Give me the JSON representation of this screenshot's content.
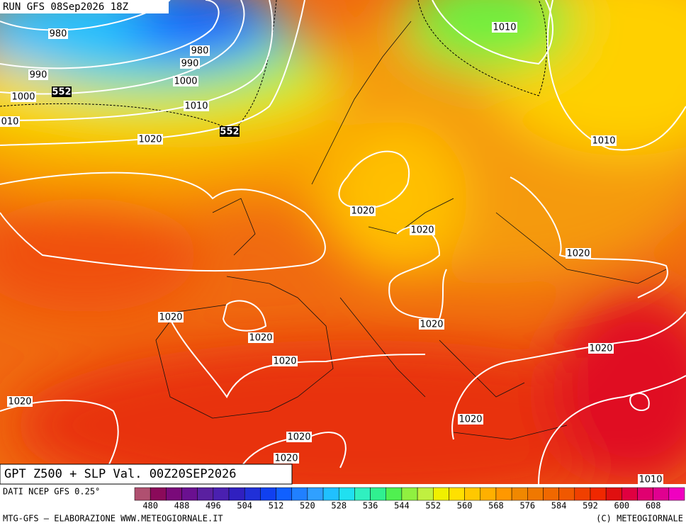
{
  "header": "RUN GFS 08Sep2026 18Z",
  "title": "GPT Z500 + SLP Val. 00Z20SEP2026",
  "isobar_labels": [
    "980",
    "980",
    "990",
    "990",
    "1000",
    "1000",
    "1010",
    "010",
    "1020",
    "1010",
    "1010",
    "1020",
    "1020",
    "1020",
    "1020",
    "1020",
    "1020",
    "1020",
    "1020",
    "1020",
    "1020",
    "1020",
    "1020",
    "1010"
  ],
  "height_labels": [
    "552",
    "552"
  ],
  "source": "DATI NCEP GFS 0.25°",
  "colorbar": {
    "ticks": [
      480,
      488,
      496,
      504,
      512,
      520,
      528,
      536,
      544,
      552,
      560,
      568,
      576,
      584,
      592,
      600,
      608
    ],
    "colors": [
      "#b05070",
      "#8b0a5a",
      "#7a0a7a",
      "#6a1090",
      "#5a20a0",
      "#4a20b0",
      "#3020c0",
      "#2030d8",
      "#1040f0",
      "#1060ff",
      "#2080ff",
      "#30a0ff",
      "#20c0ff",
      "#20e0f0",
      "#30f0c0",
      "#30f090",
      "#50f050",
      "#90f040",
      "#c0f040",
      "#f0f000",
      "#ffe000",
      "#ffc800",
      "#ffb000",
      "#ff9800",
      "#f08800",
      "#f07800",
      "#f06800",
      "#f05800",
      "#f04000",
      "#f02800",
      "#e01010",
      "#e00040",
      "#e00070",
      "#e00090",
      "#f000c0"
    ]
  },
  "footer_left": "MTG-GFS — ELABORAZIONE WWW.METEOGIORNALE.IT",
  "footer_right": "(C) METEOGIORNALE"
}
